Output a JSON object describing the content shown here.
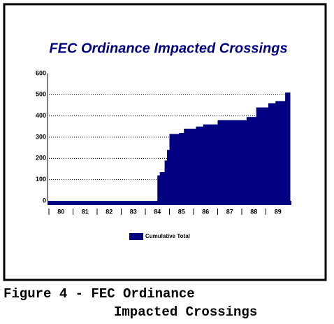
{
  "chart_data": {
    "type": "step-area",
    "title": "FEC Ordinance Impacted Crossings",
    "x": [
      79.5,
      84.0,
      84.1,
      84.3,
      84.4,
      84.5,
      84.9,
      85.1,
      85.6,
      85.9,
      86.5,
      87.7,
      88.1,
      88.6,
      88.9,
      89.3
    ],
    "series": [
      {
        "name": "Cumulative Total",
        "color": "#000080",
        "values": [
          0,
          120,
          135,
          190,
          240,
          315,
          320,
          340,
          350,
          360,
          380,
          395,
          440,
          460,
          470,
          510
        ]
      }
    ],
    "xlim": [
      79.5,
      89.5
    ],
    "xticks": [
      80,
      81,
      82,
      83,
      84,
      85,
      86,
      87,
      88,
      89
    ],
    "ylim": [
      0,
      600
    ],
    "yticks": [
      0,
      100,
      200,
      300,
      400,
      500,
      600
    ],
    "grid": true,
    "caption": [
      "Figure 4 - FEC Ordinance",
      "Impacted Crossings"
    ]
  }
}
